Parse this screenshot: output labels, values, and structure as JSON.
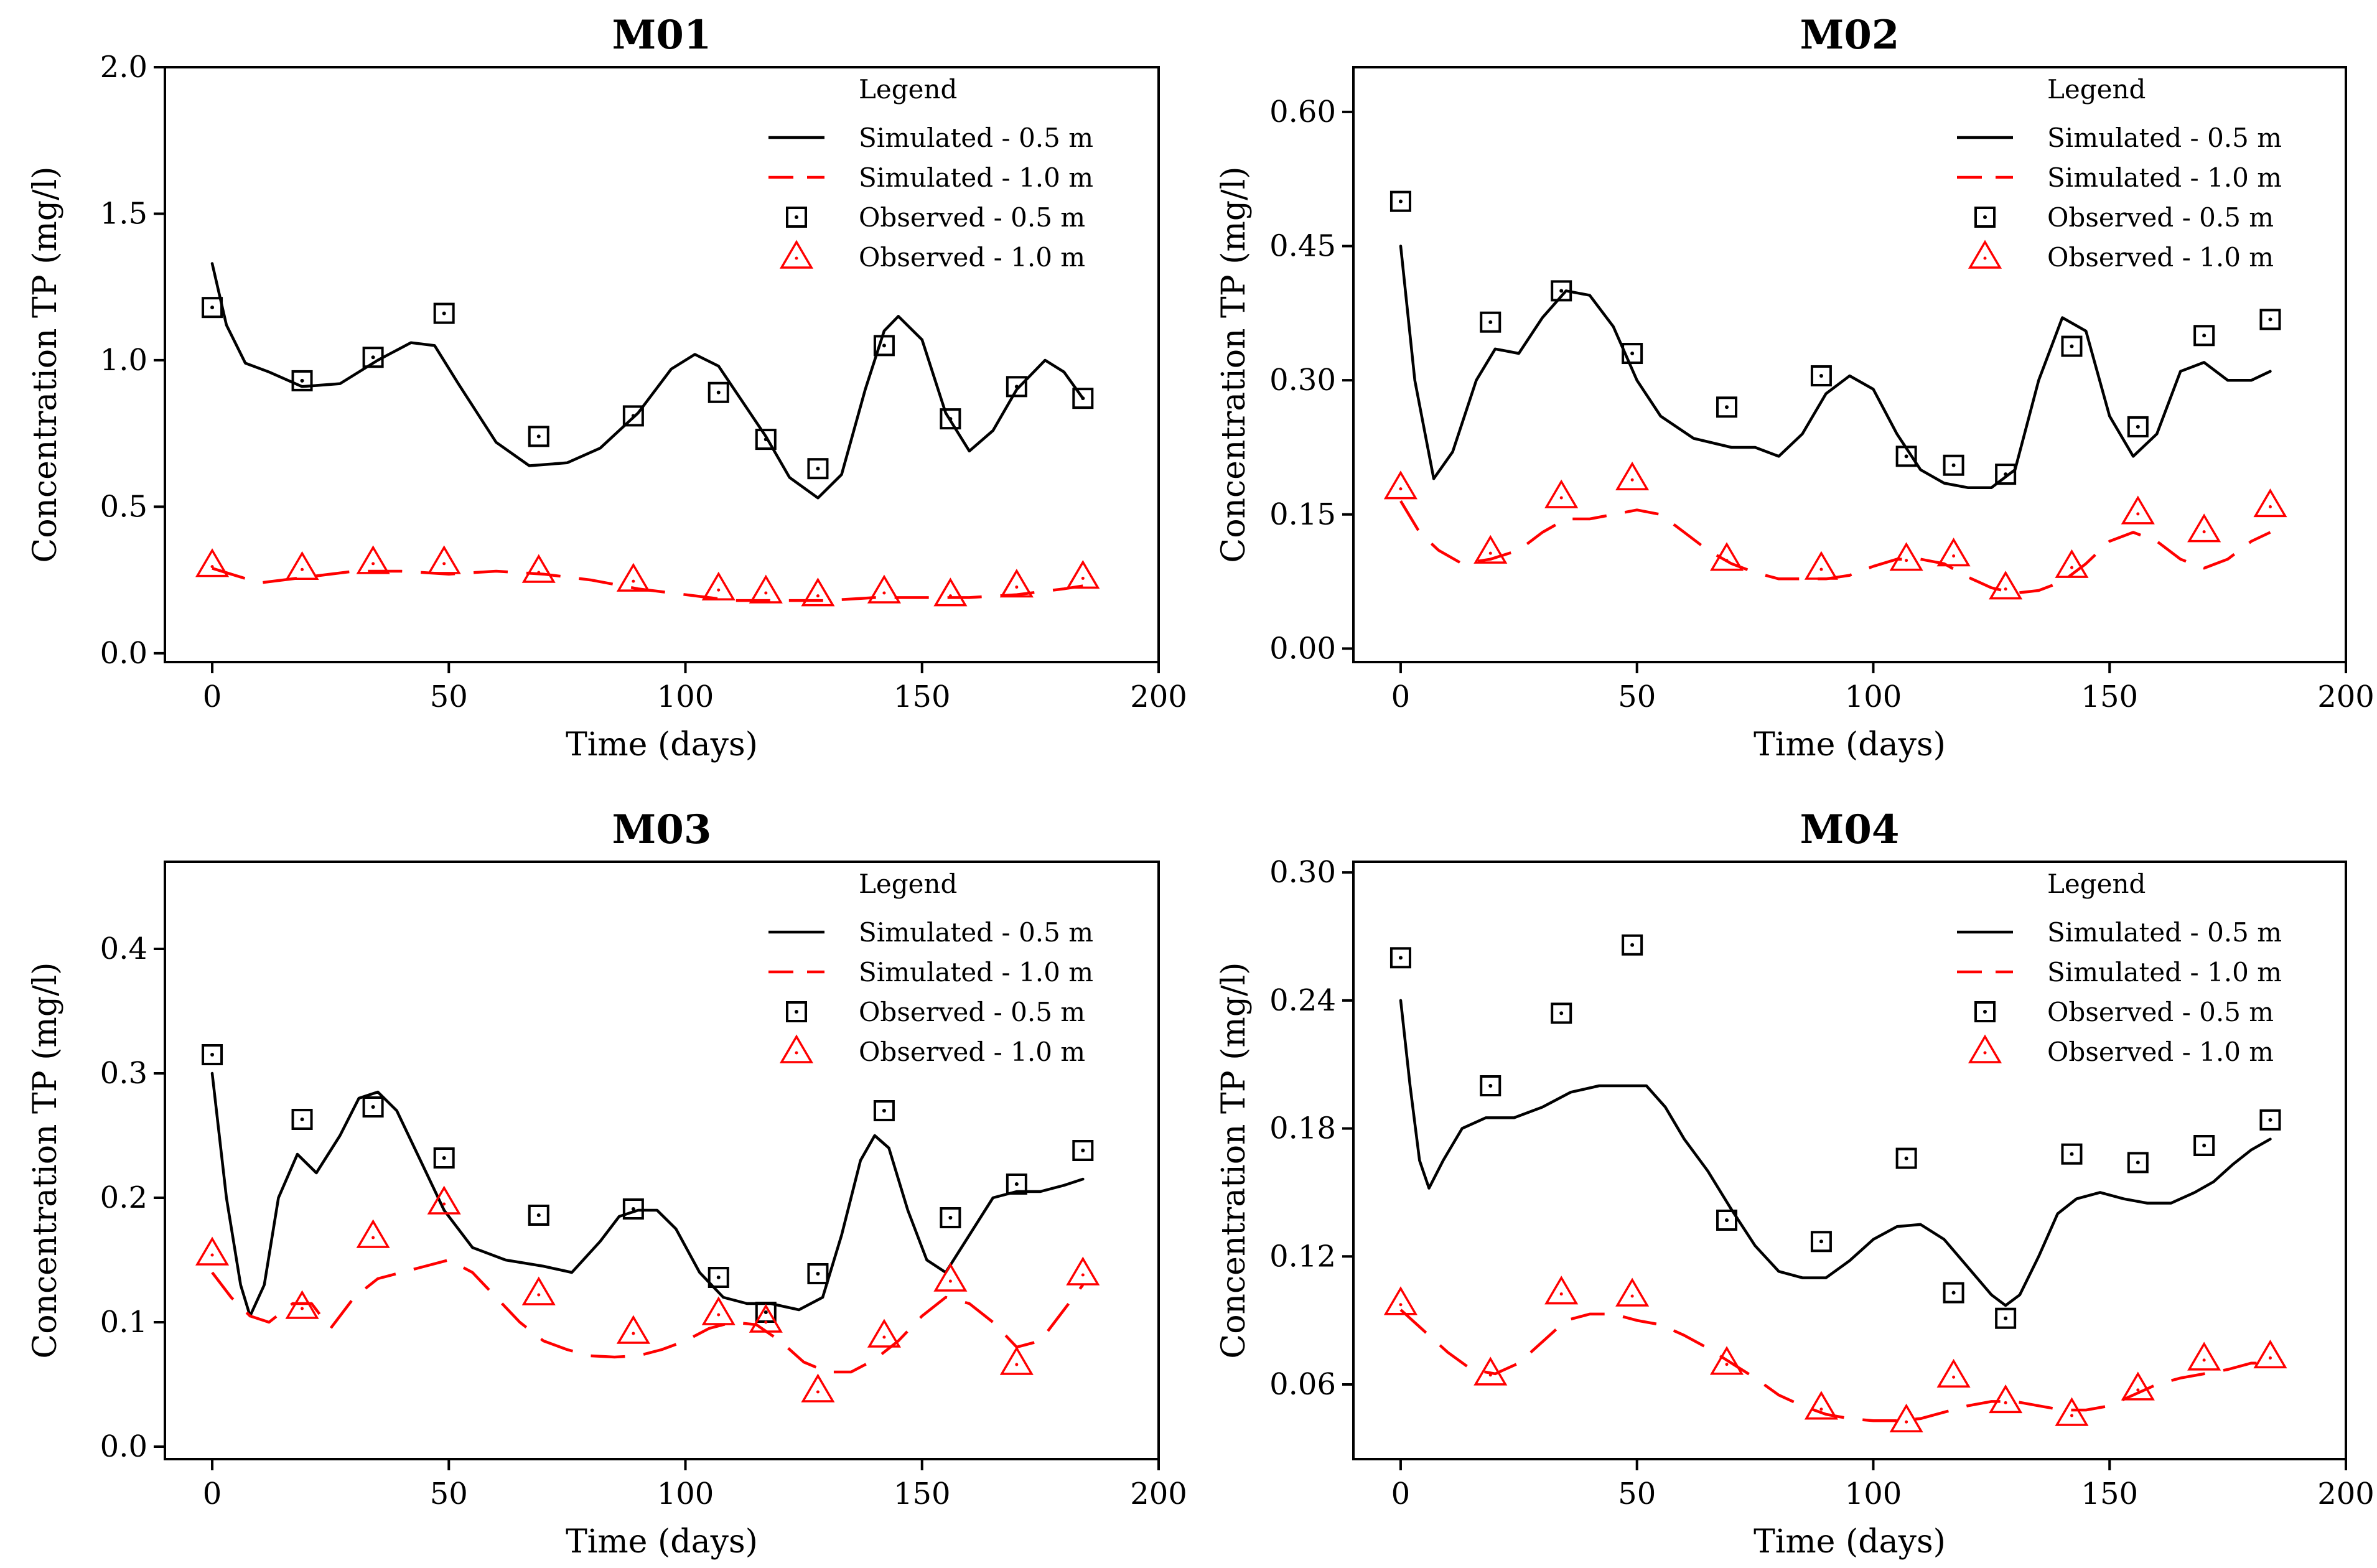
{
  "figure": {
    "xlabel": "Time (days)",
    "ylabel": "Concentration TP (mg/l)",
    "legend": {
      "title": "Legend",
      "entries": [
        {
          "key": "sim05",
          "label": "Simulated - 0.5 m",
          "kind": "line-solid",
          "color": "#000000"
        },
        {
          "key": "sim10",
          "label": "Simulated - 1.0 m",
          "kind": "line-dashed",
          "color": "#ff0000"
        },
        {
          "key": "obs05",
          "label": "Observed - 0.5 m",
          "kind": "marker-square",
          "color": "#000000"
        },
        {
          "key": "obs10",
          "label": "Observed - 1.0 m",
          "kind": "marker-triangle",
          "color": "#ff0000"
        }
      ]
    }
  },
  "chart_data": [
    {
      "type": "line",
      "title": "M01",
      "xlabel": "Time (days)",
      "ylabel": "Concentration TP (mg/l)",
      "xlim": [
        -10,
        200
      ],
      "ylim": [
        -0.03,
        2.0
      ],
      "xticks": [
        0,
        50,
        100,
        150,
        200
      ],
      "xtick_labels": [
        "0",
        "50",
        "100",
        "150",
        "200"
      ],
      "yticks": [
        0,
        0.5,
        1.0,
        1.5,
        2.0
      ],
      "ytick_labels": [
        "0.0",
        "0.5",
        "1.0",
        "1.5",
        "2.0"
      ],
      "legend_position": "top-right",
      "series": [
        {
          "name": "Simulated - 0.5 m",
          "kind": "line-solid",
          "x": [
            0,
            3,
            7,
            12,
            19,
            27,
            35,
            42,
            47,
            52,
            60,
            67,
            75,
            82,
            90,
            97,
            102,
            107,
            112,
            117,
            122,
            128,
            133,
            138,
            142,
            145,
            150,
            155,
            160,
            165,
            170,
            176,
            180,
            184
          ],
          "y": [
            1.33,
            1.12,
            0.99,
            0.96,
            0.91,
            0.92,
            1.0,
            1.06,
            1.05,
            0.92,
            0.72,
            0.64,
            0.65,
            0.7,
            0.82,
            0.97,
            1.02,
            0.98,
            0.86,
            0.74,
            0.6,
            0.53,
            0.61,
            0.9,
            1.1,
            1.15,
            1.07,
            0.82,
            0.69,
            0.76,
            0.9,
            1.0,
            0.96,
            0.87
          ]
        },
        {
          "name": "Simulated - 1.0 m",
          "kind": "line-dashed",
          "x": [
            0,
            10,
            20,
            30,
            40,
            50,
            60,
            70,
            80,
            90,
            100,
            110,
            120,
            130,
            140,
            150,
            160,
            170,
            180,
            184
          ],
          "y": [
            0.29,
            0.24,
            0.26,
            0.28,
            0.28,
            0.27,
            0.28,
            0.27,
            0.25,
            0.22,
            0.2,
            0.18,
            0.18,
            0.18,
            0.19,
            0.19,
            0.19,
            0.2,
            0.22,
            0.23
          ]
        },
        {
          "name": "Observed - 0.5 m",
          "kind": "marker-square",
          "x": [
            0,
            19,
            34,
            49,
            69,
            89,
            107,
            117,
            128,
            142,
            156,
            170,
            184
          ],
          "y": [
            1.18,
            0.93,
            1.01,
            1.16,
            0.74,
            0.81,
            0.89,
            0.73,
            0.63,
            1.05,
            0.8,
            0.91,
            0.87
          ]
        },
        {
          "name": "Observed - 1.0 m",
          "kind": "marker-triangle",
          "x": [
            0,
            19,
            34,
            49,
            69,
            89,
            107,
            117,
            128,
            142,
            156,
            170,
            184
          ],
          "y": [
            0.3,
            0.29,
            0.31,
            0.31,
            0.28,
            0.25,
            0.22,
            0.21,
            0.2,
            0.21,
            0.2,
            0.23,
            0.26
          ]
        }
      ]
    },
    {
      "type": "line",
      "title": "M02",
      "xlabel": "Time (days)",
      "ylabel": "Concentration TP (mg/l)",
      "xlim": [
        -10,
        200
      ],
      "ylim": [
        -0.015,
        0.65
      ],
      "xticks": [
        0,
        50,
        100,
        150,
        200
      ],
      "xtick_labels": [
        "0",
        "50",
        "100",
        "150",
        "200"
      ],
      "yticks": [
        0,
        0.15,
        0.3,
        0.45,
        0.6
      ],
      "ytick_labels": [
        "0.00",
        "0.15",
        "0.30",
        "0.45",
        "0.60"
      ],
      "legend_position": "top-right",
      "series": [
        {
          "name": "Simulated - 0.5 m",
          "kind": "line-solid",
          "x": [
            0,
            3,
            7,
            11,
            16,
            20,
            25,
            30,
            35,
            40,
            45,
            50,
            55,
            62,
            70,
            75,
            80,
            85,
            90,
            95,
            100,
            105,
            110,
            115,
            120,
            125,
            130,
            135,
            140,
            145,
            150,
            155,
            160,
            165,
            170,
            175,
            180,
            184
          ],
          "y": [
            0.45,
            0.3,
            0.19,
            0.22,
            0.3,
            0.335,
            0.33,
            0.37,
            0.4,
            0.395,
            0.36,
            0.3,
            0.26,
            0.235,
            0.225,
            0.225,
            0.215,
            0.24,
            0.285,
            0.305,
            0.29,
            0.24,
            0.2,
            0.185,
            0.18,
            0.18,
            0.2,
            0.3,
            0.37,
            0.355,
            0.26,
            0.215,
            0.24,
            0.31,
            0.32,
            0.3,
            0.3,
            0.31
          ]
        },
        {
          "name": "Simulated - 1.0 m",
          "kind": "line-dashed",
          "x": [
            0,
            4,
            8,
            13,
            19,
            25,
            30,
            35,
            40,
            45,
            50,
            55,
            60,
            65,
            70,
            75,
            80,
            85,
            90,
            95,
            100,
            105,
            110,
            115,
            120,
            125,
            130,
            135,
            140,
            145,
            150,
            155,
            160,
            165,
            170,
            175,
            180,
            184
          ],
          "y": [
            0.165,
            0.13,
            0.11,
            0.095,
            0.1,
            0.11,
            0.13,
            0.145,
            0.145,
            0.15,
            0.155,
            0.15,
            0.13,
            0.11,
            0.095,
            0.085,
            0.078,
            0.078,
            0.078,
            0.082,
            0.092,
            0.1,
            0.1,
            0.095,
            0.08,
            0.068,
            0.062,
            0.065,
            0.075,
            0.095,
            0.12,
            0.13,
            0.12,
            0.1,
            0.09,
            0.1,
            0.12,
            0.13
          ]
        },
        {
          "name": "Observed - 0.5 m",
          "kind": "marker-square",
          "x": [
            0,
            19,
            34,
            49,
            69,
            89,
            107,
            117,
            128,
            142,
            156,
            170,
            184
          ],
          "y": [
            0.5,
            0.365,
            0.4,
            0.33,
            0.27,
            0.305,
            0.215,
            0.205,
            0.195,
            0.338,
            0.248,
            0.35,
            0.368
          ]
        },
        {
          "name": "Observed - 1.0 m",
          "kind": "marker-triangle",
          "x": [
            0,
            19,
            34,
            49,
            69,
            89,
            107,
            117,
            128,
            142,
            156,
            170,
            184
          ],
          "y": [
            0.18,
            0.108,
            0.17,
            0.19,
            0.1,
            0.09,
            0.1,
            0.105,
            0.068,
            0.092,
            0.152,
            0.132,
            0.16
          ]
        }
      ]
    },
    {
      "type": "line",
      "title": "M03",
      "xlabel": "Time (days)",
      "ylabel": "Concentration TP (mg/l)",
      "xlim": [
        -10,
        200
      ],
      "ylim": [
        -0.01,
        0.47
      ],
      "xticks": [
        0,
        50,
        100,
        150,
        200
      ],
      "xtick_labels": [
        "0",
        "50",
        "100",
        "150",
        "200"
      ],
      "yticks": [
        0,
        0.1,
        0.2,
        0.3,
        0.4
      ],
      "ytick_labels": [
        "0.0",
        "0.1",
        "0.2",
        "0.3",
        "0.4"
      ],
      "legend_position": "top-right",
      "series": [
        {
          "name": "Simulated - 0.5 m",
          "kind": "line-solid",
          "x": [
            0,
            3,
            6,
            8,
            11,
            14,
            18,
            22,
            27,
            31,
            35,
            39,
            44,
            49,
            55,
            62,
            70,
            76,
            82,
            86,
            90,
            94,
            98,
            103,
            108,
            113,
            118,
            124,
            129,
            133,
            137,
            140,
            143,
            147,
            151,
            155,
            160,
            165,
            170,
            175,
            180,
            184
          ],
          "y": [
            0.3,
            0.2,
            0.13,
            0.105,
            0.13,
            0.2,
            0.235,
            0.22,
            0.25,
            0.28,
            0.285,
            0.27,
            0.23,
            0.19,
            0.16,
            0.15,
            0.145,
            0.14,
            0.165,
            0.185,
            0.19,
            0.19,
            0.175,
            0.14,
            0.12,
            0.115,
            0.115,
            0.11,
            0.12,
            0.17,
            0.23,
            0.25,
            0.24,
            0.19,
            0.15,
            0.14,
            0.17,
            0.2,
            0.205,
            0.205,
            0.21,
            0.215
          ]
        },
        {
          "name": "Simulated - 1.0 m",
          "kind": "line-dashed",
          "x": [
            0,
            4,
            8,
            12,
            17,
            21,
            25,
            30,
            35,
            40,
            45,
            50,
            55,
            60,
            65,
            70,
            75,
            80,
            85,
            90,
            95,
            100,
            105,
            110,
            115,
            120,
            125,
            130,
            135,
            140,
            145,
            150,
            155,
            160,
            165,
            170,
            175,
            180,
            184
          ],
          "y": [
            0.14,
            0.12,
            0.105,
            0.1,
            0.115,
            0.115,
            0.095,
            0.12,
            0.135,
            0.14,
            0.145,
            0.15,
            0.14,
            0.12,
            0.1,
            0.085,
            0.078,
            0.073,
            0.072,
            0.073,
            0.078,
            0.085,
            0.095,
            0.1,
            0.098,
            0.085,
            0.068,
            0.06,
            0.06,
            0.07,
            0.085,
            0.105,
            0.12,
            0.115,
            0.1,
            0.08,
            0.085,
            0.11,
            0.13
          ]
        },
        {
          "name": "Observed - 0.5 m",
          "kind": "marker-square",
          "x": [
            0,
            19,
            34,
            49,
            69,
            89,
            107,
            117,
            128,
            142,
            156,
            170,
            184
          ],
          "y": [
            0.315,
            0.263,
            0.273,
            0.232,
            0.186,
            0.191,
            0.136,
            0.108,
            0.139,
            0.27,
            0.184,
            0.211,
            0.238
          ]
        },
        {
          "name": "Observed - 1.0 m",
          "kind": "marker-triangle",
          "x": [
            0,
            19,
            34,
            49,
            69,
            89,
            107,
            117,
            128,
            142,
            156,
            170,
            184
          ],
          "y": [
            0.155,
            0.112,
            0.169,
            0.196,
            0.123,
            0.092,
            0.107,
            0.101,
            0.045,
            0.089,
            0.134,
            0.067,
            0.139
          ]
        }
      ]
    },
    {
      "type": "line",
      "title": "M04",
      "xlabel": "Time (days)",
      "ylabel": "Concentration TP (mg/l)",
      "xlim": [
        -10,
        200
      ],
      "ylim": [
        0.025,
        0.305
      ],
      "xticks": [
        0,
        50,
        100,
        150,
        200
      ],
      "xtick_labels": [
        "0",
        "50",
        "100",
        "150",
        "200"
      ],
      "yticks": [
        0.06,
        0.12,
        0.18,
        0.24,
        0.3
      ],
      "ytick_labels": [
        "0.06",
        "0.12",
        "0.18",
        "0.24",
        "0.30"
      ],
      "legend_position": "top-right",
      "series": [
        {
          "name": "Simulated - 0.5 m",
          "kind": "line-solid",
          "x": [
            0,
            2,
            4,
            6,
            9,
            13,
            18,
            24,
            30,
            36,
            42,
            48,
            52,
            56,
            60,
            65,
            70,
            75,
            80,
            85,
            90,
            95,
            100,
            105,
            110,
            115,
            120,
            125,
            128,
            131,
            135,
            139,
            143,
            148,
            153,
            158,
            163,
            168,
            172,
            176,
            180,
            184
          ],
          "y": [
            0.24,
            0.2,
            0.165,
            0.152,
            0.165,
            0.18,
            0.185,
            0.185,
            0.19,
            0.197,
            0.2,
            0.2,
            0.2,
            0.19,
            0.175,
            0.16,
            0.142,
            0.125,
            0.113,
            0.11,
            0.11,
            0.118,
            0.128,
            0.134,
            0.135,
            0.128,
            0.115,
            0.102,
            0.097,
            0.102,
            0.12,
            0.14,
            0.147,
            0.15,
            0.147,
            0.145,
            0.145,
            0.15,
            0.155,
            0.163,
            0.17,
            0.175
          ]
        },
        {
          "name": "Simulated - 1.0 m",
          "kind": "line-dashed",
          "x": [
            0,
            5,
            10,
            15,
            20,
            25,
            30,
            35,
            40,
            45,
            50,
            55,
            60,
            65,
            70,
            75,
            80,
            85,
            90,
            95,
            100,
            105,
            110,
            115,
            120,
            125,
            130,
            135,
            140,
            145,
            150,
            155,
            160,
            165,
            170,
            175,
            180,
            184
          ],
          "y": [
            0.095,
            0.085,
            0.075,
            0.067,
            0.065,
            0.07,
            0.08,
            0.09,
            0.093,
            0.093,
            0.09,
            0.088,
            0.083,
            0.077,
            0.07,
            0.063,
            0.055,
            0.05,
            0.046,
            0.044,
            0.043,
            0.043,
            0.044,
            0.047,
            0.05,
            0.052,
            0.052,
            0.05,
            0.048,
            0.048,
            0.05,
            0.055,
            0.06,
            0.063,
            0.065,
            0.067,
            0.07,
            0.07
          ]
        },
        {
          "name": "Observed - 0.5 m",
          "kind": "marker-square",
          "x": [
            0,
            19,
            34,
            49,
            69,
            89,
            107,
            117,
            128,
            142,
            156,
            170,
            184
          ],
          "y": [
            0.26,
            0.2,
            0.234,
            0.266,
            0.137,
            0.127,
            0.166,
            0.103,
            0.091,
            0.168,
            0.164,
            0.172,
            0.184
          ]
        },
        {
          "name": "Observed - 1.0 m",
          "kind": "marker-triangle",
          "x": [
            0,
            19,
            34,
            49,
            69,
            89,
            107,
            117,
            128,
            142,
            156,
            170,
            184
          ],
          "y": [
            0.098,
            0.065,
            0.103,
            0.102,
            0.07,
            0.049,
            0.043,
            0.064,
            0.052,
            0.046,
            0.058,
            0.072,
            0.073
          ]
        }
      ]
    }
  ]
}
